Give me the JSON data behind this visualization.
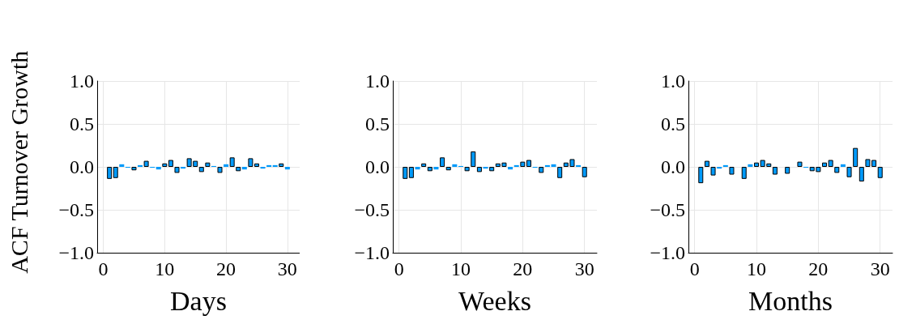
{
  "chart_data": [
    {
      "type": "bar",
      "ylabel": "ACF Turnover Growth",
      "xlabel": "Days",
      "x": [
        1,
        2,
        3,
        4,
        5,
        6,
        7,
        8,
        9,
        10,
        11,
        12,
        13,
        14,
        15,
        16,
        17,
        18,
        19,
        20,
        21,
        22,
        23,
        24,
        25,
        26,
        27,
        28,
        29,
        30
      ],
      "values": [
        -0.14,
        -0.13,
        0.03,
        -0.01,
        -0.04,
        0.02,
        0.07,
        -0.01,
        -0.03,
        0.04,
        0.08,
        -0.07,
        -0.02,
        0.1,
        0.07,
        -0.06,
        0.05,
        0.01,
        -0.07,
        0.03,
        0.11,
        -0.05,
        -0.03,
        0.1,
        0.04,
        -0.02,
        0.02,
        0.02,
        0.04,
        -0.03
      ],
      "color": "#009afa",
      "xlim": [
        -1,
        32
      ],
      "xticks": [
        0,
        10,
        20,
        30
      ],
      "ylim": [
        -1,
        1
      ],
      "yticks": [
        {
          "value": -1,
          "label": "−1.0"
        },
        {
          "value": -0.5,
          "label": "−0.5"
        },
        {
          "value": 0,
          "label": "0.0"
        },
        {
          "value": 0.5,
          "label": "0.5"
        },
        {
          "value": 1,
          "label": "1.0"
        }
      ],
      "grid": true
    },
    {
      "type": "bar",
      "xlabel": "Weeks",
      "x": [
        1,
        2,
        3,
        4,
        5,
        6,
        7,
        8,
        9,
        10,
        11,
        12,
        13,
        14,
        15,
        16,
        17,
        18,
        19,
        20,
        21,
        22,
        23,
        24,
        25,
        26,
        27,
        28,
        29,
        30
      ],
      "values": [
        -0.14,
        -0.13,
        -0.03,
        0.04,
        -0.05,
        -0.03,
        0.11,
        -0.04,
        0.03,
        0.01,
        -0.05,
        0.18,
        -0.06,
        -0.02,
        -0.05,
        0.04,
        0.05,
        -0.03,
        0.02,
        0.06,
        0.08,
        -0.01,
        -0.07,
        0.02,
        0.03,
        -0.13,
        0.05,
        0.09,
        0.02,
        -0.12
      ],
      "color": "#009afa",
      "xlim": [
        -1,
        32
      ],
      "xticks": [
        0,
        10,
        20,
        30
      ],
      "ylim": [
        -1,
        1
      ],
      "yticks": [
        {
          "value": -1,
          "label": "−1.0"
        },
        {
          "value": -0.5,
          "label": "−0.5"
        },
        {
          "value": 0,
          "label": "0.0"
        },
        {
          "value": 0.5,
          "label": "0.5"
        },
        {
          "value": 1,
          "label": "1.0"
        }
      ],
      "grid": true
    },
    {
      "type": "bar",
      "xlabel": "Months",
      "x": [
        1,
        2,
        3,
        4,
        5,
        6,
        7,
        8,
        9,
        10,
        11,
        12,
        13,
        14,
        15,
        16,
        17,
        18,
        19,
        20,
        21,
        22,
        23,
        24,
        25,
        26,
        27,
        28,
        29,
        30
      ],
      "values": [
        -0.19,
        0.07,
        -0.1,
        -0.02,
        0.02,
        -0.09,
        0,
        -0.14,
        0.03,
        0.05,
        0.08,
        0.04,
        -0.09,
        0,
        -0.08,
        0,
        0.06,
        -0.01,
        -0.05,
        -0.06,
        0.05,
        0.08,
        -0.07,
        0.03,
        -0.12,
        0.22,
        -0.17,
        0.09,
        0.08,
        -0.13
      ],
      "color": "#009afa",
      "xlim": [
        -1,
        32
      ],
      "xticks": [
        0,
        10,
        20,
        30
      ],
      "ylim": [
        -1,
        1
      ],
      "yticks": [
        {
          "value": -1,
          "label": "−1.0"
        },
        {
          "value": -0.5,
          "label": "−0.5"
        },
        {
          "value": 0,
          "label": "0.0"
        },
        {
          "value": 0.5,
          "label": "0.5"
        },
        {
          "value": 1,
          "label": "1.0"
        }
      ],
      "grid": true
    }
  ]
}
